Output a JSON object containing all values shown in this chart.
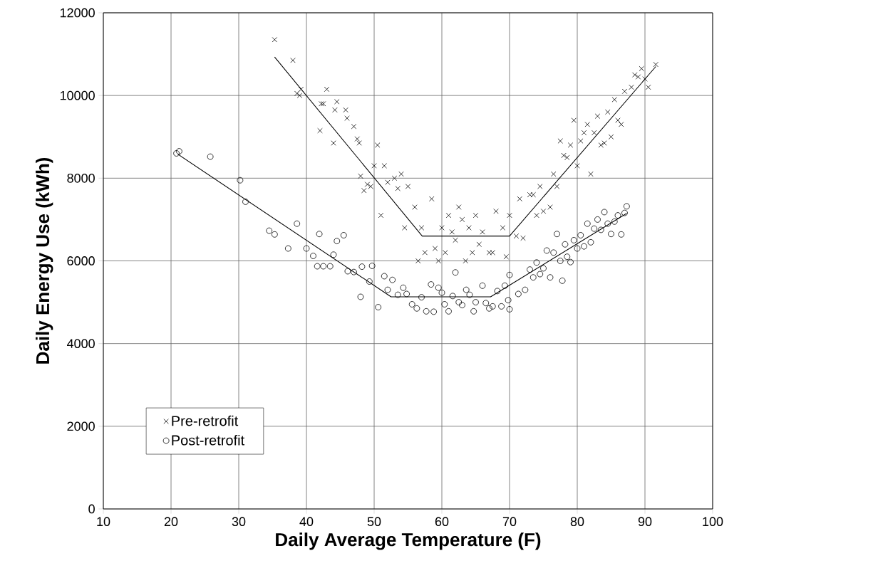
{
  "chart_data": {
    "type": "scatter",
    "xlabel": "Daily Average Temperature (F)",
    "ylabel": "Daily Energy Use (kWh)",
    "xlim": [
      10,
      100
    ],
    "xticks": [
      10,
      20,
      30,
      40,
      50,
      60,
      70,
      80,
      90,
      100
    ],
    "ylim": [
      0,
      12000
    ],
    "yticks": [
      0,
      2000,
      4000,
      6000,
      8000,
      10000,
      12000
    ],
    "grid": true,
    "legend": "bottom left",
    "series": [
      {
        "type": "line",
        "color": "#000000",
        "marker": "none",
        "x": [
          35.3,
          57.1,
          70,
          91.6
        ],
        "values": [
          10930,
          6600,
          6600,
          10700
        ]
      },
      {
        "type": "line",
        "color": "#000000",
        "marker": "none",
        "x": [
          21,
          52.5,
          67.2,
          87.3
        ],
        "values": [
          8580,
          5130,
          5130,
          7150
        ]
      },
      {
        "name": "Pre-retrofit",
        "color": "#000000",
        "marker": "cross",
        "x": [
          35.3,
          38,
          38.6,
          39,
          39.2,
          42,
          42.2,
          42.5,
          43,
          44,
          44.2,
          44.5,
          45.8,
          46,
          47,
          47.5,
          47.8,
          48,
          48.5,
          49,
          49.5,
          50,
          50.5,
          51,
          51.5,
          52,
          53,
          53.5,
          54,
          54.5,
          55,
          56,
          56.5,
          57,
          57.5,
          58.5,
          59,
          59.5,
          60,
          60.5,
          61,
          61.5,
          62,
          62.5,
          63,
          63.5,
          64,
          64.5,
          65,
          65.5,
          66,
          67,
          67.5,
          68,
          69,
          69.5,
          70,
          71,
          71.5,
          72,
          73,
          73.5,
          74,
          74.5,
          75,
          76,
          76.5,
          77,
          77.5,
          78,
          78.5,
          79,
          79.5,
          80,
          80.5,
          81,
          81.5,
          82,
          82.5,
          83,
          83.5,
          84,
          84.5,
          85,
          85.5,
          86,
          86.5,
          87,
          88,
          88.5,
          89,
          89.5,
          90,
          90.5,
          91.6
        ],
        "values": [
          11350,
          10850,
          10050,
          10000,
          10150,
          9150,
          9800,
          9800,
          10150,
          8850,
          9650,
          9850,
          9650,
          9450,
          9250,
          8950,
          8850,
          8050,
          7700,
          7850,
          7800,
          8300,
          8800,
          7100,
          8300,
          7900,
          8000,
          7750,
          8100,
          6800,
          7800,
          7300,
          6000,
          6800,
          6200,
          7500,
          6300,
          6000,
          6800,
          6200,
          7100,
          6700,
          6500,
          7300,
          7000,
          6000,
          6800,
          6200,
          7100,
          6400,
          6700,
          6200,
          6200,
          7200,
          6800,
          6100,
          7100,
          6600,
          7500,
          6550,
          7600,
          7600,
          7100,
          7800,
          7200,
          7300,
          8100,
          7800,
          8900,
          8550,
          8500,
          8800,
          9400,
          8300,
          8900,
          9100,
          9300,
          8100,
          9100,
          9500,
          8800,
          8850,
          9600,
          9000,
          9900,
          9400,
          9300,
          10100,
          10200,
          10500,
          10450,
          10650,
          10400,
          10200,
          10750
        ]
      },
      {
        "name": "Post-retrofit",
        "color": "#000000",
        "marker": "circle",
        "x": [
          20.8,
          21.2,
          25.8,
          30.2,
          31,
          34.5,
          35.3,
          37.3,
          38.6,
          40,
          41,
          41.6,
          41.9,
          42.5,
          43.5,
          44,
          44.5,
          45.5,
          46.1,
          47,
          48,
          48.2,
          49.3,
          49.7,
          50.6,
          51.5,
          52,
          52.7,
          53.5,
          54.3,
          54.8,
          55.6,
          56.3,
          57,
          57.7,
          58.4,
          58.8,
          59.5,
          60,
          60.4,
          61,
          61.6,
          62,
          62.5,
          63,
          63.6,
          64.1,
          64.7,
          65,
          66,
          66.5,
          67,
          67.5,
          68.2,
          68.8,
          69.3,
          69.8,
          70,
          70,
          71.3,
          72.3,
          73,
          73.5,
          74,
          74.5,
          75,
          75.5,
          76,
          76.5,
          77,
          77.5,
          77.8,
          78.2,
          78.5,
          79,
          79.5,
          80,
          80.5,
          81,
          81.5,
          82,
          82.5,
          83,
          83.5,
          84,
          84.5,
          85,
          85.5,
          86,
          86.5,
          87,
          87.3
        ],
        "values": [
          8600,
          8650,
          8520,
          7950,
          7430,
          6730,
          6640,
          6300,
          6900,
          6300,
          6120,
          5870,
          6650,
          5870,
          5870,
          6150,
          6480,
          6620,
          5750,
          5730,
          5130,
          5860,
          5500,
          5880,
          4880,
          5630,
          5300,
          5540,
          5180,
          5350,
          5200,
          4950,
          4850,
          5120,
          4780,
          5430,
          4770,
          5350,
          5230,
          4950,
          4780,
          5150,
          5720,
          5000,
          4930,
          5300,
          5180,
          4780,
          5000,
          5400,
          4980,
          4850,
          4900,
          5270,
          4900,
          5400,
          5050,
          4830,
          5660,
          5200,
          5300,
          5790,
          5600,
          5960,
          5680,
          5820,
          6250,
          5600,
          6200,
          6650,
          6000,
          5520,
          6400,
          6100,
          5970,
          6500,
          6300,
          6620,
          6350,
          6900,
          6450,
          6780,
          7000,
          6750,
          7180,
          6900,
          6650,
          6950,
          7100,
          6640,
          7160,
          7320
        ]
      }
    ]
  }
}
